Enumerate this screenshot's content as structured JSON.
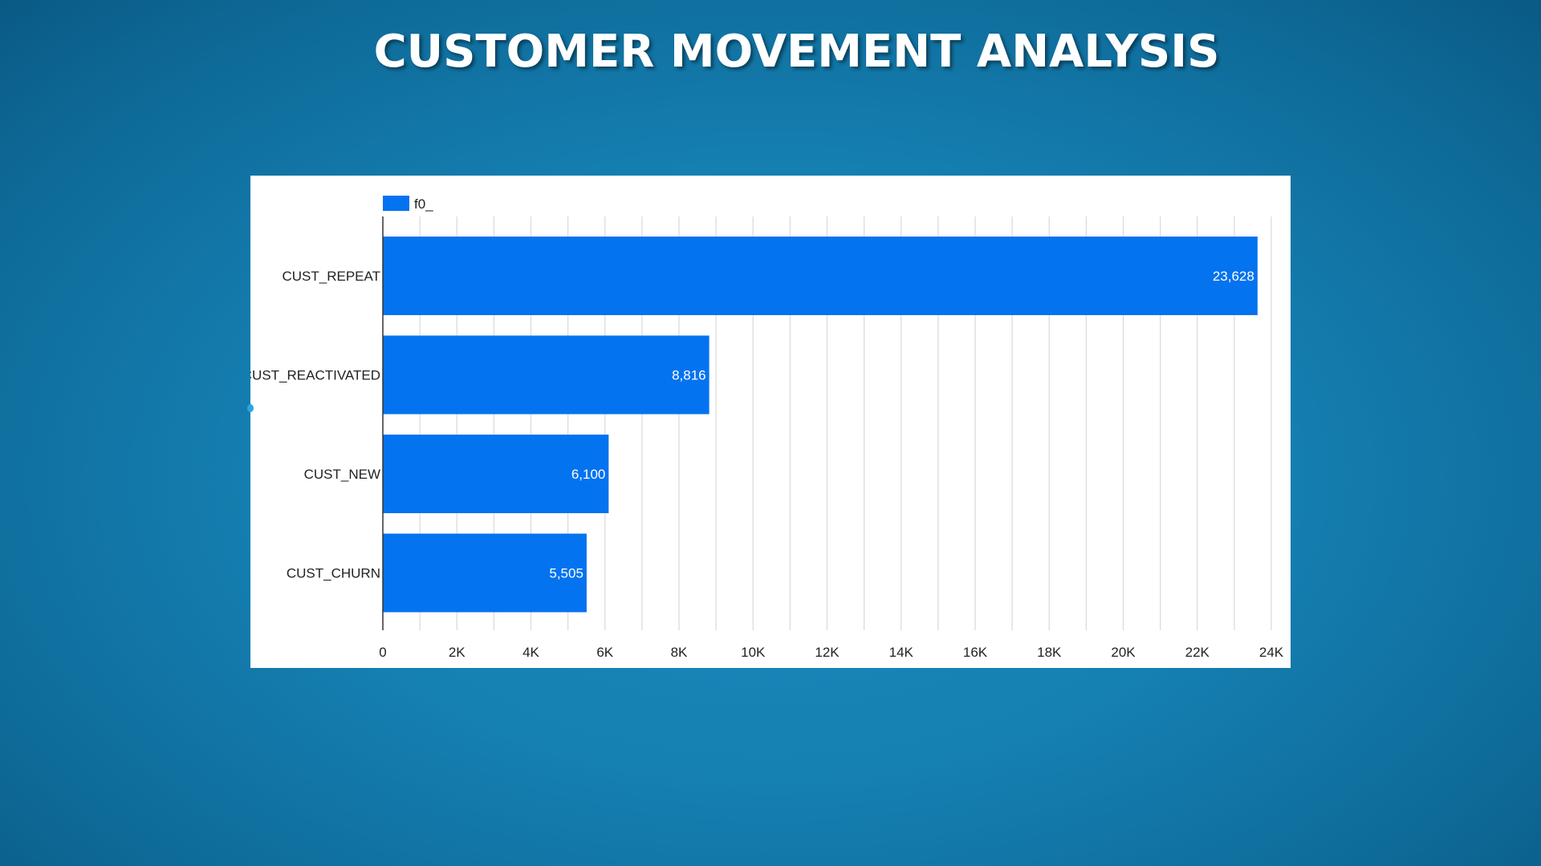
{
  "title": "CUSTOMER MOVEMENT ANALYSIS",
  "colors": {
    "bar": "#0473f0",
    "grid": "#d9d9d9",
    "axis": "#333333",
    "text": "#222222",
    "bar_label": "#ffffff"
  },
  "chart_data": {
    "type": "bar",
    "orientation": "horizontal",
    "legend": {
      "position": "top-left",
      "entries": [
        "f0_"
      ]
    },
    "categories": [
      "CUST_REPEAT",
      "CUST_REACTIVATED",
      "CUST_NEW",
      "CUST_CHURN"
    ],
    "series": [
      {
        "name": "f0_",
        "values": [
          23628,
          8816,
          6100,
          5505
        ],
        "labels": [
          "23,628",
          "8,816",
          "6,100",
          "5,505"
        ]
      }
    ],
    "xlim": [
      0,
      24000
    ],
    "x_ticks": [
      0,
      2000,
      4000,
      6000,
      8000,
      10000,
      12000,
      14000,
      16000,
      18000,
      20000,
      22000,
      24000
    ],
    "x_tick_labels": [
      "0",
      "2K",
      "4K",
      "6K",
      "8K",
      "10K",
      "12K",
      "14K",
      "16K",
      "18K",
      "20K",
      "22K",
      "24K"
    ],
    "minor_grid_step": 1000,
    "grid": true,
    "xlabel": "",
    "ylabel": ""
  }
}
